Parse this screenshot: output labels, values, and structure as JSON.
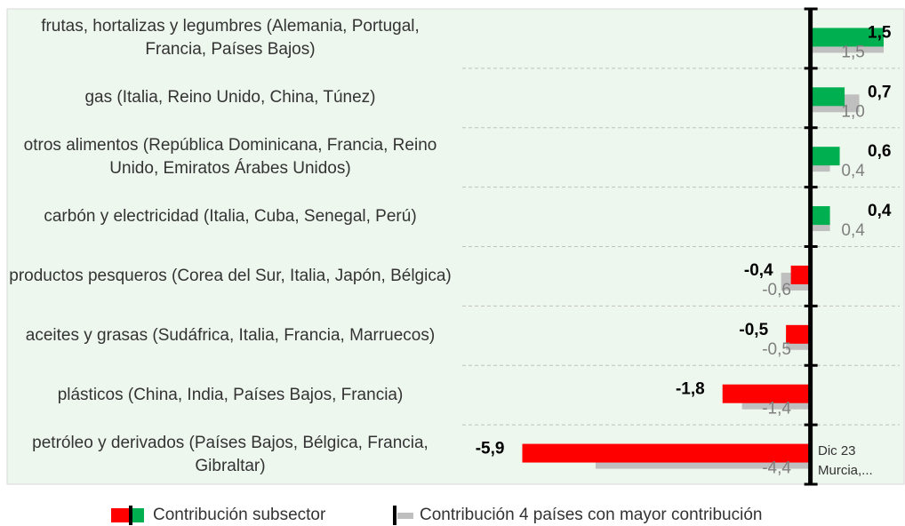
{
  "chart_data": {
    "type": "barh",
    "categories": [
      "frutas, hortalizas y legumbres (Alemania, Portugal, Francia, Países Bajos)",
      "gas (Italia, Reino Unido, China, Túnez)",
      "otros alimentos (República Dominicana, Francia, Reino Unido, Emiratos Árabes Unidos)",
      "carbón y electricidad (Italia, Cuba, Senegal, Perú)",
      "productos pesqueros (Corea del Sur, Italia, Japón, Bélgica)",
      "aceites y grasas (Sudáfrica, Italia, Francia, Marruecos)",
      "plásticos (China, India, Países Bajos, Francia)",
      "petróleo y derivados (Países Bajos, Bélgica, Francia, Gibraltar)"
    ],
    "series": [
      {
        "name": "Contribución subsector",
        "color": "#00b050",
        "negative_color": "#ff0000",
        "values": [
          1.5,
          0.7,
          0.6,
          0.4,
          -0.4,
          -0.5,
          -1.8,
          -5.9
        ],
        "value_labels": [
          "1,5",
          "0,7",
          "0,6",
          "0,4",
          "-0,4",
          "-0,5",
          "-1,8",
          "-5,9"
        ]
      },
      {
        "name": "Contribución 4 países con mayor contribución",
        "color": "#bfbfbf",
        "values": [
          1.5,
          1.0,
          0.4,
          0.4,
          -0.6,
          -0.5,
          -1.4,
          -4.4
        ],
        "value_labels": [
          "1,5",
          "1,0",
          "0,4",
          "0,4",
          "-0,6",
          "-0,5",
          "-1,4",
          "-4,4"
        ]
      }
    ],
    "xlim": [
      -6,
      1.7
    ],
    "annotation": [
      "Dic 23",
      "Murcia,..."
    ],
    "background": "#eef7ee"
  }
}
